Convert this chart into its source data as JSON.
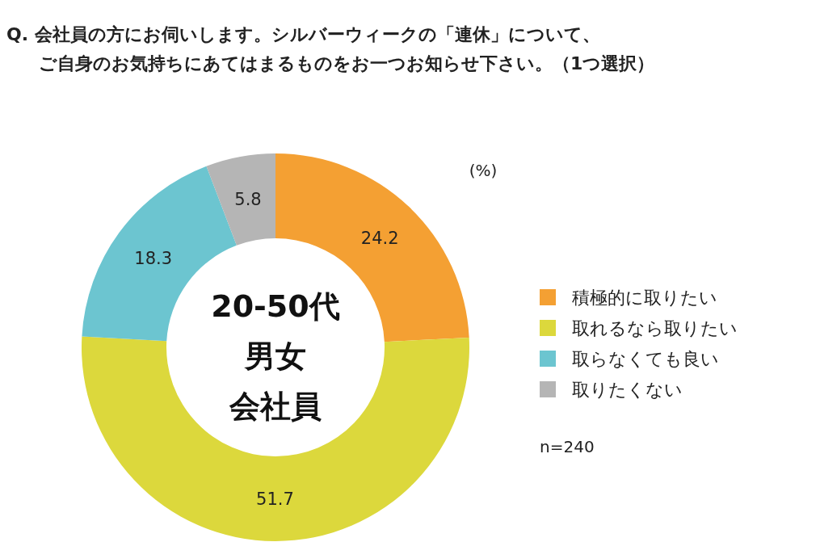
{
  "chart_data": {
    "type": "donut",
    "title": "Q. 会社員の方にお伺いします。シルバーウィークの「連休」について、",
    "subtitle": "ご自身のお気持ちにあてはまるものをお一つお知らせ下さい。（1つ選択）",
    "categories": [
      "積極的に取りたい",
      "取れるなら取りたい",
      "取らなくても良い",
      "取りたくない"
    ],
    "values": [
      24.2,
      51.7,
      18.3,
      5.8
    ],
    "colors": [
      "#f4a033",
      "#dcd83c",
      "#6cc5d0",
      "#b5b5b5"
    ],
    "data_labels": true,
    "legend": "right",
    "annotations": [
      "20-50代",
      "男女",
      "会社員",
      "(%)",
      "n=240"
    ]
  }
}
